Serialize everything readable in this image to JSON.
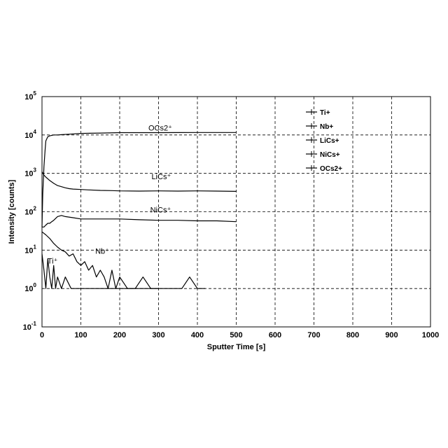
{
  "chart_data": {
    "type": "line",
    "xlabel": "Sputter Time [s]",
    "ylabel": "Intensity [counts]",
    "xlim": [
      0,
      1000
    ],
    "ylim": [
      0.1,
      100000
    ],
    "yscale": "log",
    "grid": true,
    "legend_position": "top-right",
    "x_ticks": [
      "0",
      "100",
      "200",
      "300",
      "400",
      "500",
      "600",
      "700",
      "800",
      "900",
      "1000"
    ],
    "y_ticks": [
      {
        "base": "10",
        "exp": "-1"
      },
      {
        "base": "10",
        "exp": "0"
      },
      {
        "base": "10",
        "exp": "1"
      },
      {
        "base": "10",
        "exp": "2"
      },
      {
        "base": "10",
        "exp": "3"
      },
      {
        "base": "10",
        "exp": "4"
      },
      {
        "base": "10",
        "exp": "5"
      }
    ],
    "series": [
      {
        "name": "Ti+",
        "label": "Ti⁺",
        "color": "#000000",
        "x": [
          0,
          5,
          10,
          15,
          20,
          25,
          30,
          35,
          40,
          50,
          60,
          75,
          90,
          110,
          130,
          150,
          170,
          190,
          210,
          230,
          250,
          270,
          300
        ],
        "y": [
          8,
          3,
          1,
          6,
          2,
          1,
          4,
          1,
          2,
          1,
          2,
          1,
          1,
          1,
          1,
          1,
          1,
          1,
          1,
          1,
          1,
          1,
          1
        ]
      },
      {
        "name": "Nb+",
        "label": "Nb⁺",
        "color": "#000000",
        "x": [
          0,
          10,
          20,
          30,
          40,
          50,
          60,
          70,
          80,
          90,
          100,
          110,
          120,
          130,
          140,
          150,
          160,
          170,
          180,
          190,
          200,
          220,
          240,
          260,
          280,
          300,
          320,
          340,
          360,
          380,
          400,
          420
        ],
        "y": [
          30,
          25,
          20,
          15,
          12,
          10,
          9,
          7,
          8,
          5,
          4,
          5,
          3,
          4,
          2,
          3,
          2,
          1,
          3,
          1,
          2,
          1,
          1,
          2,
          1,
          1,
          1,
          1,
          1,
          2,
          1,
          1
        ]
      },
      {
        "name": "LiCs+",
        "label": "LiCs⁺",
        "color": "#000000",
        "x": [
          0,
          5,
          10,
          20,
          30,
          40,
          50,
          60,
          70,
          80,
          100,
          120,
          150,
          180,
          200,
          250,
          300,
          350,
          400,
          450,
          500
        ],
        "y": [
          1100,
          900,
          800,
          650,
          550,
          480,
          450,
          420,
          400,
          390,
          380,
          370,
          360,
          355,
          350,
          345,
          350,
          345,
          350,
          345,
          340
        ]
      },
      {
        "name": "NiCs+",
        "label": "NiCs⁺",
        "color": "#000000",
        "x": [
          0,
          5,
          10,
          15,
          20,
          25,
          30,
          40,
          50,
          60,
          80,
          100,
          150,
          200,
          250,
          300,
          350,
          400,
          450,
          500
        ],
        "y": [
          40,
          40,
          45,
          50,
          50,
          55,
          60,
          75,
          80,
          75,
          70,
          65,
          65,
          65,
          62,
          60,
          60,
          58,
          58,
          55
        ]
      },
      {
        "name": "OCs2+",
        "label": "OCs2⁺",
        "color": "#000000",
        "x": [
          0,
          2,
          5,
          8,
          10,
          15,
          20,
          30,
          40,
          50,
          70,
          100,
          150,
          200,
          300,
          400,
          500
        ],
        "y": [
          40,
          300,
          1500,
          4000,
          7000,
          9000,
          9500,
          10000,
          10000,
          10200,
          10500,
          11000,
          11200,
          11500,
          11500,
          11600,
          11600
        ]
      }
    ]
  }
}
